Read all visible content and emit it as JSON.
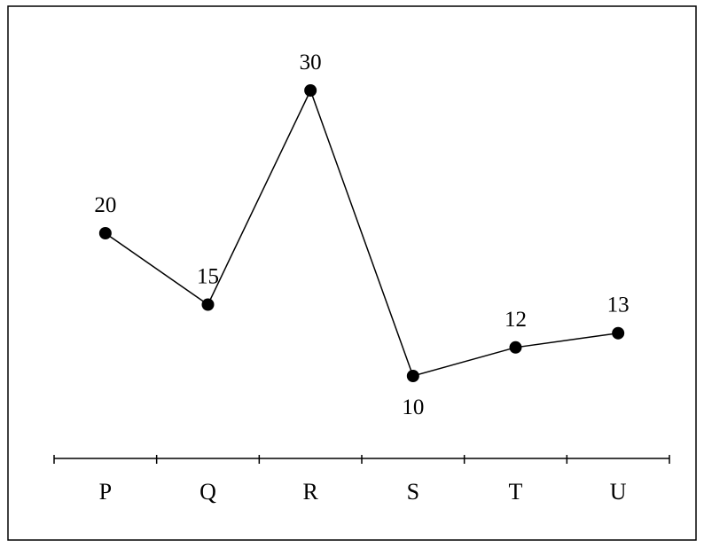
{
  "chart_data": {
    "type": "line",
    "title": "",
    "xlabel": "",
    "ylabel": "",
    "categories": [
      "P",
      "Q",
      "R",
      "S",
      "T",
      "U"
    ],
    "series": [
      {
        "values": [
          20,
          15,
          30,
          10,
          12,
          13
        ]
      }
    ],
    "data_labels": [
      "20",
      "15",
      "30",
      "10",
      "12",
      "13"
    ],
    "ylim": [
      0,
      35
    ],
    "grid": false,
    "legend": "none",
    "colors": {
      "line": "#000000",
      "marker": "#000000",
      "border": "#000000",
      "background": "#ffffff"
    }
  }
}
